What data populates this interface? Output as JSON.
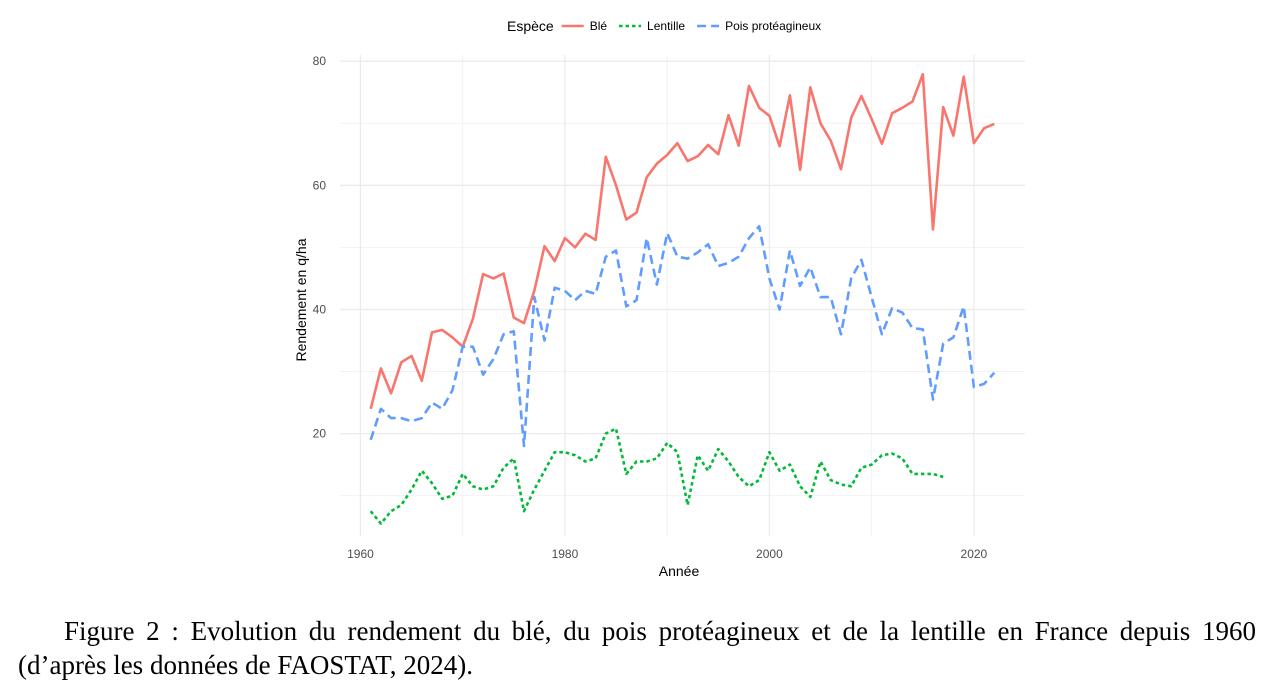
{
  "chart_data": {
    "type": "line",
    "xlabel": "Année",
    "ylabel": "Rendement en q/ha",
    "xlim": [
      1958,
      2025
    ],
    "ylim": [
      3.5,
      81
    ],
    "x_ticks": [
      1960,
      1980,
      2000,
      2020
    ],
    "y_ticks": [
      20,
      40,
      60,
      80
    ],
    "grid": true,
    "legend": {
      "title": "Espèce",
      "position": "top"
    },
    "series": [
      {
        "name": "Blé",
        "color": "#F8766D",
        "dash": "solid",
        "x": [
          1961,
          1962,
          1963,
          1964,
          1965,
          1966,
          1967,
          1968,
          1969,
          1970,
          1971,
          1972,
          1973,
          1974,
          1975,
          1976,
          1977,
          1978,
          1979,
          1980,
          1981,
          1982,
          1983,
          1984,
          1985,
          1986,
          1987,
          1988,
          1989,
          1990,
          1991,
          1992,
          1993,
          1994,
          1995,
          1996,
          1997,
          1998,
          1999,
          2000,
          2001,
          2002,
          2003,
          2004,
          2005,
          2006,
          2007,
          2008,
          2009,
          2010,
          2011,
          2012,
          2013,
          2014,
          2015,
          2016,
          2017,
          2018,
          2019,
          2020,
          2021,
          2022
        ],
        "y": [
          24.0,
          30.5,
          26.5,
          31.5,
          32.5,
          28.5,
          36.3,
          36.7,
          35.5,
          34.0,
          38.5,
          45.7,
          45.0,
          45.8,
          38.7,
          37.8,
          43.0,
          50.2,
          47.8,
          51.5,
          50.0,
          52.2,
          51.2,
          64.6,
          60.0,
          54.5,
          55.6,
          61.3,
          63.5,
          64.9,
          66.8,
          63.9,
          64.7,
          66.5,
          65.0,
          71.3,
          66.4,
          76.0,
          72.5,
          71.2,
          66.3,
          74.5,
          62.5,
          75.8,
          70.0,
          67.2,
          62.6,
          70.9,
          74.4,
          70.7,
          66.7,
          71.6,
          72.5,
          73.5,
          77.9,
          52.9,
          72.6,
          68.0,
          77.5,
          66.8,
          69.2,
          69.9
        ]
      },
      {
        "name": "Lentille",
        "color": "#00BA38",
        "dash": "dotted",
        "x": [
          1961,
          1962,
          1963,
          1964,
          1965,
          1966,
          1967,
          1968,
          1969,
          1970,
          1971,
          1972,
          1973,
          1974,
          1975,
          1976,
          1977,
          1978,
          1979,
          1980,
          1981,
          1982,
          1983,
          1984,
          1985,
          1986,
          1987,
          1988,
          1989,
          1990,
          1991,
          1992,
          1993,
          1994,
          1995,
          1996,
          1997,
          1998,
          1999,
          2000,
          2001,
          2002,
          2003,
          2004,
          2005,
          2006,
          2007,
          2008,
          2009,
          2010,
          2011,
          2012,
          2013,
          2014,
          2015,
          2016,
          2017
        ],
        "y": [
          7.5,
          5.5,
          7.5,
          8.5,
          11.0,
          14.0,
          12.0,
          9.5,
          10.0,
          13.5,
          11.5,
          11.0,
          11.5,
          14.5,
          16.0,
          7.5,
          11.0,
          14.0,
          17.0,
          17.0,
          16.5,
          15.5,
          16.0,
          20.0,
          20.8,
          13.5,
          15.5,
          15.5,
          16.0,
          18.5,
          17.0,
          8.5,
          16.5,
          14.0,
          17.5,
          15.5,
          13.0,
          11.5,
          12.5,
          17.0,
          14.0,
          15.0,
          11.5,
          9.8,
          15.5,
          12.5,
          11.8,
          11.5,
          14.5,
          15.0,
          16.5,
          16.8,
          16.0,
          13.5,
          13.5,
          13.5,
          13.0
        ]
      },
      {
        "name": "Pois protéagineux",
        "color": "#619CFF",
        "dash": "dashed",
        "x": [
          1961,
          1962,
          1963,
          1964,
          1965,
          1966,
          1967,
          1968,
          1969,
          1970,
          1971,
          1972,
          1973,
          1974,
          1975,
          1976,
          1977,
          1978,
          1979,
          1980,
          1981,
          1982,
          1983,
          1984,
          1985,
          1986,
          1987,
          1988,
          1989,
          1990,
          1991,
          1992,
          1993,
          1994,
          1995,
          1996,
          1997,
          1998,
          1999,
          2000,
          2001,
          2002,
          2003,
          2004,
          2005,
          2006,
          2007,
          2008,
          2009,
          2010,
          2011,
          2012,
          2013,
          2014,
          2015,
          2016,
          2017,
          2018,
          2019,
          2020,
          2021,
          2022
        ],
        "y": [
          19.0,
          24.0,
          22.5,
          22.5,
          22.0,
          22.5,
          25.0,
          24.0,
          27.0,
          34.0,
          34.0,
          29.5,
          32.0,
          36.0,
          36.5,
          18.0,
          42.0,
          35.0,
          43.5,
          43.0,
          41.5,
          43.0,
          42.5,
          48.5,
          49.5,
          40.5,
          41.5,
          51.5,
          44.0,
          52.3,
          48.5,
          48.2,
          49.2,
          50.5,
          47.0,
          47.5,
          48.5,
          51.5,
          53.4,
          45.0,
          40.0,
          49.5,
          43.8,
          46.8,
          42.0,
          42.0,
          36.0,
          45.0,
          48.0,
          42.0,
          36.0,
          40.2,
          39.5,
          37.0,
          36.8,
          25.5,
          34.5,
          35.5,
          40.5,
          27.5,
          28.0,
          29.8
        ]
      }
    ]
  },
  "caption": "Figure 2 : Evolution du rendement du blé, du pois protéagineux et de la lentille en France depuis 1960 (d’après les données de FAOSTAT, 2024)."
}
